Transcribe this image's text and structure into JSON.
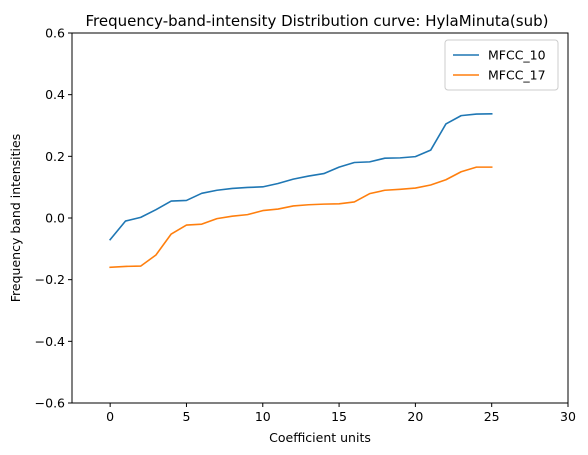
{
  "chart_data": {
    "type": "line",
    "title": "Frequency-band-intensity Distribution curve: HylaMinuta(sub)",
    "xlabel": "Coefficient units",
    "ylabel": "Frequency band intensities",
    "xlim": [
      -2.5,
      30
    ],
    "ylim": [
      -0.6,
      0.6
    ],
    "xticks": [
      0,
      5,
      10,
      15,
      20,
      25,
      30
    ],
    "yticks": [
      -0.6,
      -0.4,
      -0.2,
      0.0,
      0.2,
      0.4,
      0.6
    ],
    "xtick_labels": [
      "0",
      "5",
      "10",
      "15",
      "20",
      "25",
      "30"
    ],
    "ytick_labels": [
      "−0.6",
      "−0.4",
      "−0.2",
      "0.0",
      "0.2",
      "0.4",
      "0.6"
    ],
    "grid": false,
    "legend_position": "top-right",
    "x": [
      0,
      1,
      2,
      3,
      4,
      5,
      6,
      7,
      8,
      9,
      10,
      11,
      12,
      13,
      14,
      15,
      16,
      17,
      18,
      19,
      20,
      21,
      22,
      23,
      24,
      25
    ],
    "series": [
      {
        "name": "MFCC_10",
        "color": "#1f77b4",
        "values": [
          -0.07,
          -0.01,
          0.002,
          0.027,
          0.055,
          0.057,
          0.08,
          0.09,
          0.096,
          0.099,
          0.101,
          0.112,
          0.126,
          0.136,
          0.144,
          0.165,
          0.18,
          0.182,
          0.194,
          0.195,
          0.199,
          0.22,
          0.305,
          0.332,
          0.337,
          0.338
        ]
      },
      {
        "name": "MFCC_17",
        "color": "#ff7f0e",
        "values": [
          -0.16,
          -0.157,
          -0.156,
          -0.12,
          -0.052,
          -0.023,
          -0.02,
          -0.002,
          0.006,
          0.011,
          0.024,
          0.029,
          0.039,
          0.043,
          0.045,
          0.046,
          0.052,
          0.079,
          0.09,
          0.093,
          0.097,
          0.107,
          0.124,
          0.15,
          0.165,
          0.165
        ]
      }
    ]
  }
}
